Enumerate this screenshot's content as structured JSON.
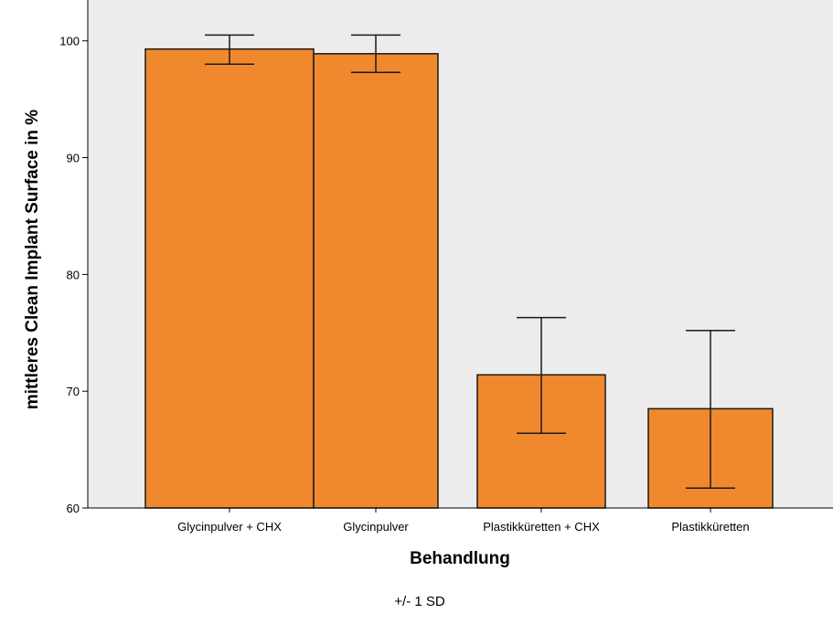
{
  "chart_data": {
    "type": "bar",
    "title": "",
    "xlabel": "Behandlung",
    "ylabel": "mittleres Clean Implant Surface in %",
    "footnote": "+/- 1 SD",
    "categories": [
      "Glycinpulver + CHX",
      "Glycinpulver",
      "Plastikküretten + CHX",
      "Plastikküretten"
    ],
    "values": [
      99.3,
      98.9,
      71.4,
      68.5
    ],
    "error_low": [
      98.0,
      97.3,
      66.4,
      61.7
    ],
    "error_high": [
      100.5,
      100.5,
      76.3,
      75.2
    ],
    "ylim": [
      60,
      103.5
    ],
    "yticks": [
      60,
      70,
      80,
      90,
      100
    ],
    "grid": false,
    "colors": {
      "bar": "#f0892d",
      "bar_edge": "#1a1a1a",
      "plot_bg": "#ececec",
      "error_bar": "#1a1a1a"
    }
  }
}
